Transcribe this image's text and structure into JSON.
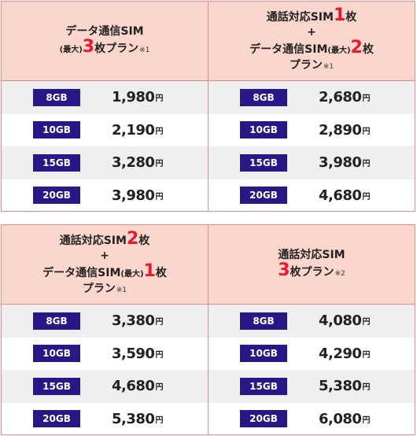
{
  "tables": [
    {
      "headers": [
        {
          "line1": "データ通信SIM",
          "line2_prefix": "(最大)",
          "line2_big": "3",
          "line2_text": "枚プラン",
          "line2_note": "※1"
        },
        {
          "line1_text": "通話対応SIM",
          "line1_big": "1",
          "line1_suffix": "枚",
          "plus": "+",
          "line2_text": "データ通信SIM",
          "line2_small": "(最大)",
          "line2_big": "2",
          "line2_suffix": "枚",
          "line3_text": "プラン",
          "line3_note": "※1"
        }
      ],
      "columns": [
        {
          "rows": [
            {
              "gb": "8GB",
              "price": "1,980",
              "unit": "円"
            },
            {
              "gb": "10GB",
              "price": "2,190",
              "unit": "円"
            },
            {
              "gb": "15GB",
              "price": "3,280",
              "unit": "円"
            },
            {
              "gb": "20GB",
              "price": "3,980",
              "unit": "円"
            }
          ]
        },
        {
          "rows": [
            {
              "gb": "8GB",
              "price": "2,680",
              "unit": "円"
            },
            {
              "gb": "10GB",
              "price": "2,890",
              "unit": "円"
            },
            {
              "gb": "15GB",
              "price": "3,980",
              "unit": "円"
            },
            {
              "gb": "20GB",
              "price": "4,680",
              "unit": "円"
            }
          ]
        }
      ]
    },
    {
      "headers": [
        {
          "line1_text": "通話対応SIM",
          "line1_big": "2",
          "line1_suffix": "枚",
          "plus": "+",
          "line2_text": "データ通信SIM",
          "line2_small": "(最大)",
          "line2_big": "1",
          "line2_suffix": "枚",
          "line3_text": "プラン",
          "line3_note": "※1"
        },
        {
          "line1": "通話対応SIM",
          "line2_big": "3",
          "line2_text": "枚プラン",
          "line2_note": "※2"
        }
      ],
      "columns": [
        {
          "rows": [
            {
              "gb": "8GB",
              "price": "3,380",
              "unit": "円"
            },
            {
              "gb": "10GB",
              "price": "3,590",
              "unit": "円"
            },
            {
              "gb": "15GB",
              "price": "4,680",
              "unit": "円"
            },
            {
              "gb": "20GB",
              "price": "5,380",
              "unit": "円"
            }
          ]
        },
        {
          "rows": [
            {
              "gb": "8GB",
              "price": "4,080",
              "unit": "円"
            },
            {
              "gb": "10GB",
              "price": "4,290",
              "unit": "円"
            },
            {
              "gb": "15GB",
              "price": "5,380",
              "unit": "円"
            },
            {
              "gb": "20GB",
              "price": "6,080",
              "unit": "円"
            }
          ]
        }
      ]
    }
  ]
}
